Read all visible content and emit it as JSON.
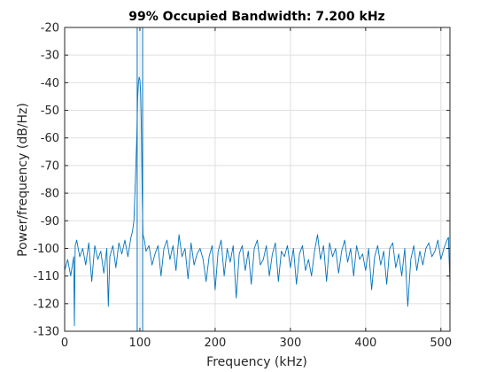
{
  "chart_data": {
    "type": "line",
    "title": "99% Occupied Bandwidth: 7.200 kHz",
    "xlabel": "Frequency (kHz)",
    "ylabel": "Power/frequency (dB/Hz)",
    "xlim": [
      0,
      512
    ],
    "ylim": [
      -130,
      -20
    ],
    "xticks": [
      0,
      100,
      200,
      300,
      400,
      500
    ],
    "yticks": [
      -130,
      -120,
      -110,
      -100,
      -90,
      -80,
      -70,
      -60,
      -50,
      -40,
      -30,
      -20
    ],
    "grid": true,
    "line_color": "#0072BD",
    "occupied_bandwidth_markers_khz": [
      96.4,
      103.6
    ],
    "series": [
      {
        "x": [
          0,
          4,
          8,
          12,
          13,
          14,
          16,
          20,
          24,
          28,
          32,
          36,
          40,
          44,
          48,
          52,
          56,
          58,
          60,
          64,
          68,
          72,
          76,
          80,
          84,
          88,
          90,
          92,
          94,
          96,
          97,
          98,
          99,
          100,
          101,
          102,
          103,
          104,
          106,
          108,
          112,
          116,
          120,
          124,
          128,
          132,
          136,
          140,
          144,
          148,
          152,
          156,
          160,
          164,
          168,
          172,
          176,
          180,
          184,
          188,
          192,
          196,
          200,
          204,
          208,
          212,
          216,
          220,
          224,
          228,
          232,
          236,
          240,
          244,
          248,
          252,
          256,
          260,
          264,
          268,
          272,
          276,
          280,
          284,
          288,
          292,
          296,
          300,
          304,
          308,
          312,
          316,
          320,
          324,
          328,
          332,
          336,
          340,
          344,
          348,
          352,
          356,
          360,
          364,
          368,
          372,
          376,
          380,
          384,
          388,
          392,
          396,
          400,
          404,
          408,
          412,
          416,
          420,
          424,
          428,
          432,
          436,
          440,
          444,
          448,
          452,
          456,
          460,
          464,
          468,
          472,
          476,
          480,
          484,
          488,
          492,
          496,
          500,
          504,
          508,
          510,
          512
        ],
        "y": [
          -108,
          -104,
          -110,
          -103,
          -128,
          -99,
          -97,
          -103,
          -100,
          -106,
          -98,
          -112,
          -99,
          -104,
          -101,
          -109,
          -100,
          -121,
          -103,
          -99,
          -107,
          -98,
          -102,
          -97,
          -103,
          -96,
          -94,
          -90,
          -75,
          -58,
          -46,
          -40,
          -38,
          -39,
          -44,
          -58,
          -80,
          -95,
          -97,
          -101,
          -99,
          -106,
          -102,
          -99,
          -110,
          -100,
          -97,
          -104,
          -99,
          -108,
          -95,
          -103,
          -100,
          -111,
          -98,
          -106,
          -102,
          -100,
          -104,
          -112,
          -103,
          -99,
          -115,
          -101,
          -97,
          -110,
          -100,
          -105,
          -99,
          -118,
          -102,
          -99,
          -108,
          -101,
          -113,
          -100,
          -97,
          -106,
          -104,
          -99,
          -110,
          -102,
          -98,
          -112,
          -101,
          -103,
          -99,
          -107,
          -100,
          -113,
          -102,
          -99,
          -108,
          -104,
          -110,
          -101,
          -95,
          -104,
          -99,
          -112,
          -98,
          -103,
          -100,
          -109,
          -101,
          -97,
          -105,
          -100,
          -110,
          -99,
          -104,
          -102,
          -108,
          -100,
          -115,
          -103,
          -99,
          -106,
          -101,
          -113,
          -100,
          -98,
          -107,
          -102,
          -110,
          -100,
          -121,
          -104,
          -99,
          -108,
          -101,
          -106,
          -100,
          -98,
          -103,
          -101,
          -97,
          -104,
          -100,
          -97,
          -96,
          -113
        ]
      }
    ]
  }
}
